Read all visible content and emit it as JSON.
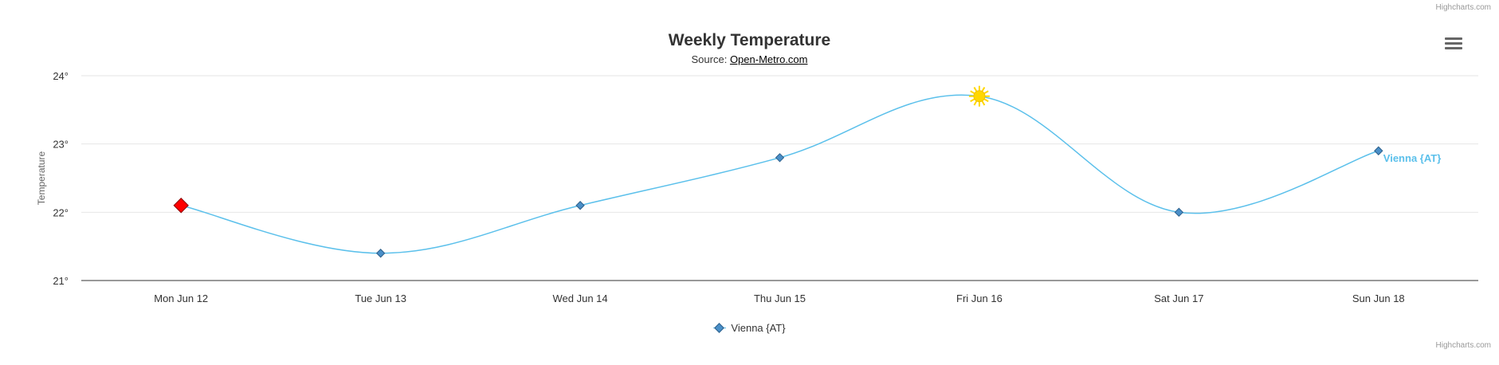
{
  "credits_label": "Highcharts.com",
  "menu": {
    "icon": "hamburger-menu-icon"
  },
  "colors": {
    "series": "#5bc0eb",
    "marker": "#4a8fc8",
    "highlight": "#ff0000",
    "sun": "#ffd700",
    "grid": "#e6e6e6"
  },
  "chart_data": {
    "type": "line",
    "title": "Weekly Temperature",
    "subtitle_prefix": "Source: ",
    "subtitle_link": "Open-Metro.com",
    "ylabel": "Temperature",
    "xlabel": "",
    "ylim": [
      21,
      24
    ],
    "yticks": [
      "21°",
      "22°",
      "23°",
      "24°"
    ],
    "categories": [
      "Mon Jun 12",
      "Tue Jun 13",
      "Wed Jun 14",
      "Thu Jun 15",
      "Fri Jun 16",
      "Sat Jun 17",
      "Sun Jun 18"
    ],
    "series": [
      {
        "name": "Vienna {AT}",
        "values": [
          22.1,
          21.4,
          22.1,
          22.8,
          23.7,
          22.0,
          22.9
        ],
        "special_markers": {
          "0": "red-diamond",
          "4": "sun-icon"
        }
      }
    ],
    "series_end_label": "Vienna {AT}",
    "grid": true,
    "legend": "bottom-center"
  }
}
